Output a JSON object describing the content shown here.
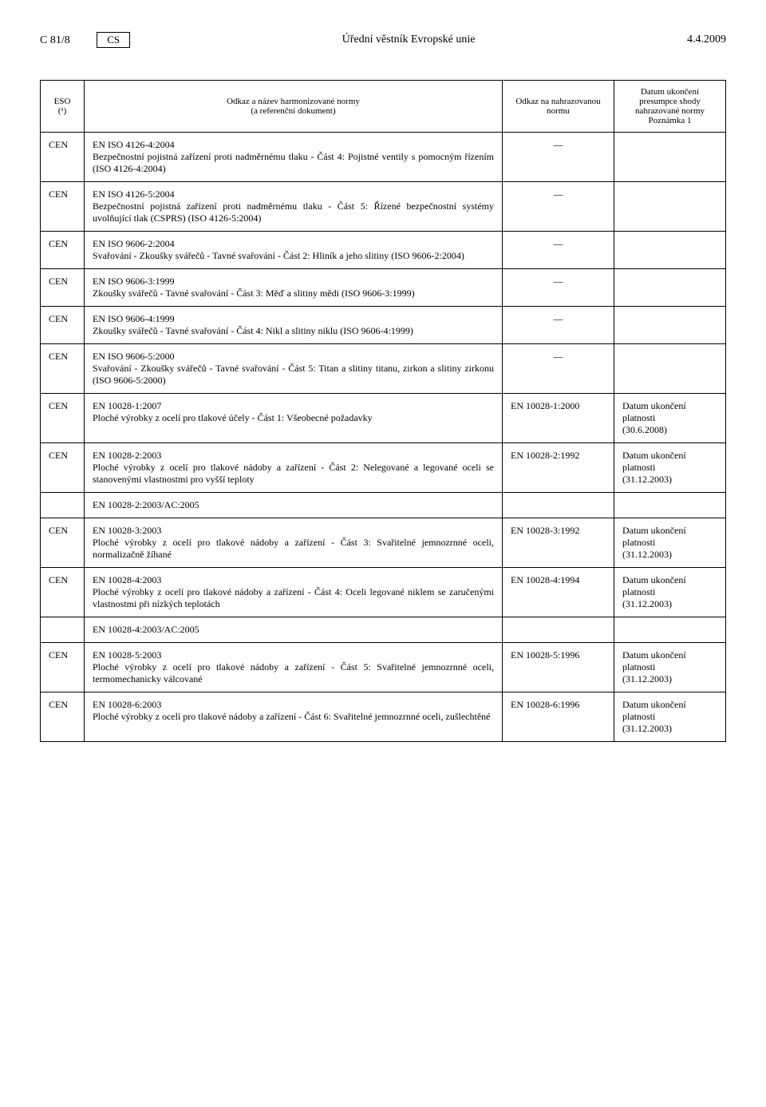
{
  "header": {
    "left": "C 81/8",
    "lang": "CS",
    "center": "Úřední věstník Evropské unie",
    "right": "4.4.2009"
  },
  "columns": {
    "eso": "ESO (¹)",
    "title": "Odkaz a název harmonizované normy\n(a referenční dokument)",
    "ref": "Odkaz na nahrazovanou normu",
    "date": "Datum ukončení presumpce shody nahrazované normy\nPoznámka 1"
  },
  "rows": [
    {
      "eso": "CEN",
      "title": "EN ISO 4126-4:2004",
      "desc": "Bezpečnostní pojistná zařízení proti nadměrnému tlaku - Část 4: Pojistné ventily s pomocným řízením (ISO 4126-4:2004)",
      "ref": "—",
      "date": ""
    },
    {
      "eso": "CEN",
      "title": "EN ISO 4126-5:2004",
      "desc": "Bezpečnostní pojistná zařízení proti nadměrnému tlaku - Část 5: Řízené bezpečnostní systémy uvolňující tlak (CSPRS) (ISO 4126-5:2004)",
      "ref": "—",
      "date": ""
    },
    {
      "eso": "CEN",
      "title": "EN ISO 9606-2:2004",
      "desc": "Svařování - Zkoušky svářečů - Tavné svařování - Část 2: Hliník a jeho slitiny (ISO 9606-2:2004)",
      "ref": "—",
      "date": ""
    },
    {
      "eso": "CEN",
      "title": "EN ISO 9606-3:1999",
      "desc": "Zkoušky svářečů - Tavné svařování - Část 3: Měď a slitiny mědi (ISO 9606-3:1999)",
      "ref": "—",
      "date": ""
    },
    {
      "eso": "CEN",
      "title": "EN ISO 9606-4:1999",
      "desc": "Zkoušky svářečů - Tavné svařování - Část 4: Nikl a slitiny niklu (ISO 9606-4:1999)",
      "ref": "—",
      "date": ""
    },
    {
      "eso": "CEN",
      "title": "EN ISO 9606-5:2000",
      "desc": "Svařování - Zkoušky svářečů - Tavné svařování - Část 5: Titan a slitiny titanu, zirkon a slitiny zirkonu (ISO 9606-5:2000)",
      "ref": "—",
      "date": ""
    },
    {
      "eso": "CEN",
      "title": "EN 10028-1:2007",
      "desc": "Ploché výrobky z ocelí pro tlakové účely - Část 1: Všeobecné požadavky",
      "ref": "EN 10028-1:2000",
      "date": "Datum ukončení platnosti\n(30.6.2008)"
    },
    {
      "eso": "CEN",
      "title": "EN 10028-2:2003",
      "desc": "Ploché výrobky z ocelí pro tlakové nádoby a zařízení - Část 2: Nelegované a legované oceli se stanovenými vlastnostmi pro vyšší teploty",
      "ref": "EN 10028-2:1992",
      "date": "Datum ukončení platnosti\n(31.12.2003)"
    },
    {
      "eso": "",
      "title": "EN 10028-2:2003/AC:2005",
      "desc": "",
      "ref": "",
      "date": ""
    },
    {
      "eso": "CEN",
      "title": "EN 10028-3:2003",
      "desc": "Ploché výrobky z ocelí pro tlakové nádoby a zařízení - Část 3: Svařitelné jemnozrnné oceli, normalizačně žíhané",
      "ref": "EN 10028-3:1992",
      "date": "Datum ukončení platnosti\n(31.12.2003)"
    },
    {
      "eso": "CEN",
      "title": "EN 10028-4:2003",
      "desc": "Ploché výrobky z ocelí pro tlakové nádoby a zařízení - Část 4: Oceli legované niklem se zaručenými vlastnostmi při nízkých teplotách",
      "ref": "EN 10028-4:1994",
      "date": "Datum ukončení platnosti\n(31.12.2003)"
    },
    {
      "eso": "",
      "title": "EN 10028-4:2003/AC:2005",
      "desc": "",
      "ref": "",
      "date": ""
    },
    {
      "eso": "CEN",
      "title": "EN 10028-5:2003",
      "desc": "Ploché výrobky z ocelí pro tlakové nádoby a zařízení - Část 5: Svařitelné jemnozrnné oceli, termomechanicky válcované",
      "ref": "EN 10028-5:1996",
      "date": "Datum ukončení platnosti\n(31.12.2003)"
    },
    {
      "eso": "CEN",
      "title": "EN 10028-6:2003",
      "desc": "Ploché výrobky z ocelí pro tlakové nádoby a zařízení - Část 6: Svařitelné jemnozrnné oceli, zušlechtěné",
      "ref": "EN 10028-6:1996",
      "date": "Datum ukončení platnosti\n(31.12.2003)"
    }
  ]
}
